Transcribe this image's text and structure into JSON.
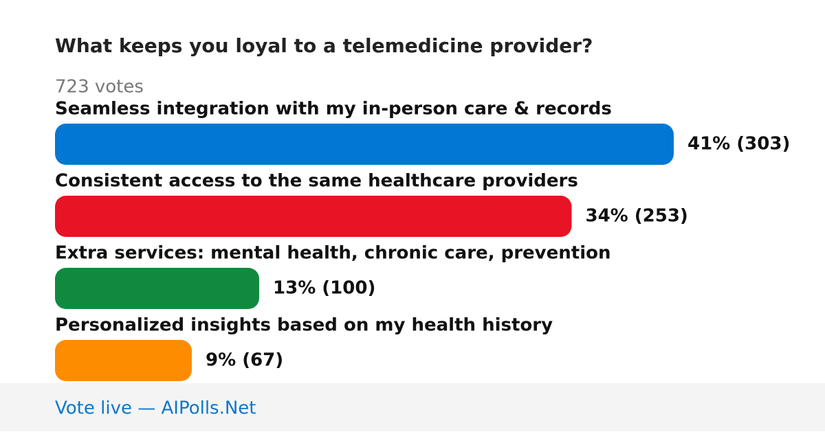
{
  "chart_data": {
    "type": "bar",
    "orientation": "horizontal",
    "title": "What keeps you loyal to a telemedicine provider?",
    "subtitle": "723 votes",
    "categories": [
      "Seamless integration with my in-person care & records",
      "Consistent access to the same healthcare providers",
      "Extra services: mental health, chronic care, prevention",
      "Personalized insights based on my health history"
    ],
    "values": [
      303,
      253,
      100,
      67
    ],
    "value_labels": [
      "41% (303)",
      "34% (253)",
      "13% (100)",
      "9% (67)"
    ],
    "colors": [
      "#0377d4",
      "#e81325",
      "#118a3f",
      "#fe8c00"
    ]
  },
  "footer": "Vote live — AIPolls.Net"
}
